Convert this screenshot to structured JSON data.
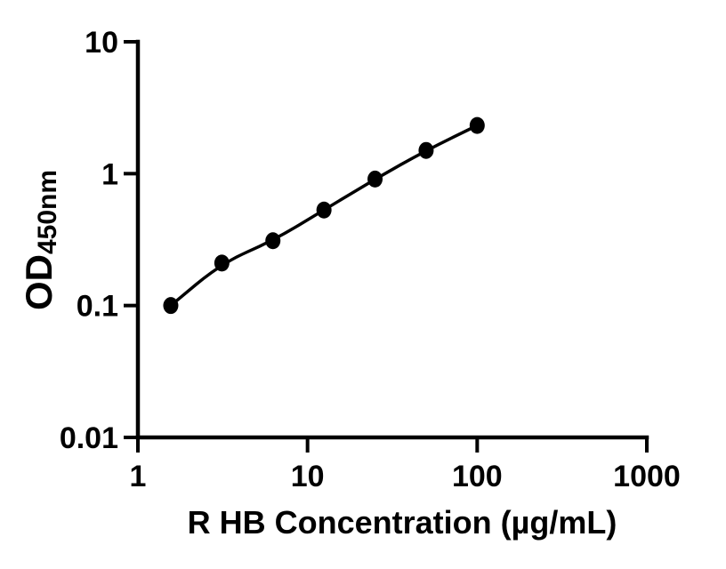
{
  "figure": {
    "background": "#ffffff",
    "ink_color": "#000000"
  },
  "chart_data": {
    "type": "scatter",
    "title": "",
    "xlabel": "R HB Concentration (µg/mL)",
    "ylabel_main": "OD",
    "ylabel_sub": "450nm",
    "x_scale": "log",
    "y_scale": "log",
    "xlim": [
      1,
      1000
    ],
    "ylim": [
      0.01,
      10
    ],
    "x_ticks": [
      1,
      10,
      100,
      1000
    ],
    "x_tick_labels": [
      "1",
      "10",
      "100",
      "1000"
    ],
    "y_ticks": [
      10,
      1,
      0.1,
      0.01
    ],
    "y_tick_labels": [
      "10",
      "1",
      "0.1",
      "0.01"
    ],
    "grid": false,
    "legend": "none",
    "marker_shape": "filled-circle",
    "line_style": "solid-connecting-curve",
    "series": [
      {
        "points": [
          {
            "x": 1.5625,
            "y": 0.1
          },
          {
            "x": 3.125,
            "y": 0.21
          },
          {
            "x": 6.25,
            "y": 0.31
          },
          {
            "x": 12.5,
            "y": 0.53
          },
          {
            "x": 25,
            "y": 0.91
          },
          {
            "x": 50,
            "y": 1.5
          },
          {
            "x": 100,
            "y": 2.32
          }
        ]
      }
    ]
  }
}
